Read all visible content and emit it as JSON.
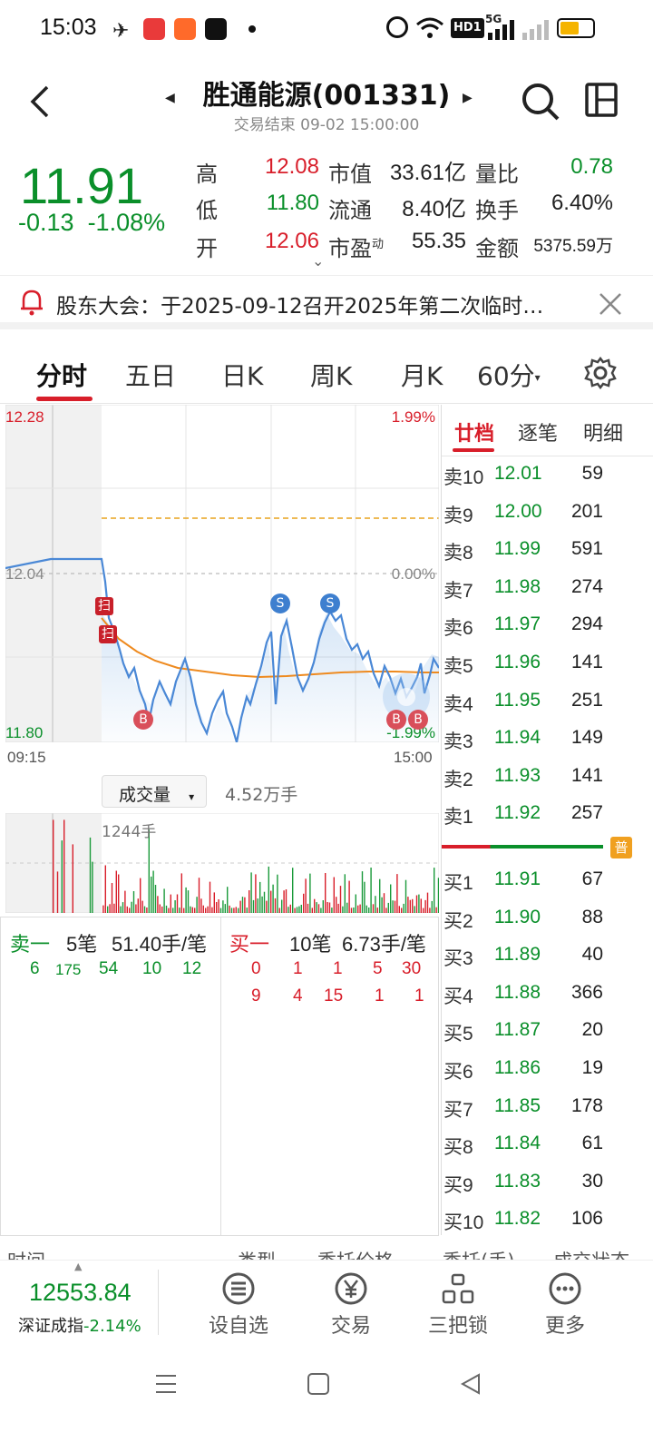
{
  "status_bar": {
    "time": "15:03",
    "icons": [
      "telegram-icon",
      "red-app-icon",
      "video-app-icon",
      "tiktok-icon",
      "alarm-icon",
      "wifi-icon",
      "hd-icon",
      "5g-signal-icon",
      "signal-icon",
      "battery-icon"
    ],
    "hd_label": "HD1",
    "net_label": "5G"
  },
  "header": {
    "title": "胜通能源(001331)",
    "subtitle": "交易结束 09-02 15:00:00"
  },
  "quote": {
    "price": "11.91",
    "change": "-0.13",
    "change_pct": "-1.08%",
    "high_label": "高",
    "high": "12.08",
    "low_label": "低",
    "low": "11.80",
    "open_label": "开",
    "open": "12.06",
    "mktcap_label": "市值",
    "mktcap": "33.61亿",
    "float_label": "流通",
    "float": "8.40亿",
    "pe_label": "市盈",
    "pe_sup": "动",
    "pe": "55.35",
    "volratio_label": "量比",
    "volratio": "0.78",
    "turnover_label": "换手",
    "turnover": "6.40%",
    "amount_label": "金额",
    "amount": "5375.59万"
  },
  "notice": {
    "text": "股东大会：于2025-09-12召开2025年第二次临时…"
  },
  "tabs": [
    "分时",
    "五日",
    "日K",
    "周K",
    "月K",
    "60分"
  ],
  "chart": {
    "y_max": "12.28",
    "y_mid": "12.04",
    "y_min": "11.80",
    "pct_max": "1.99%",
    "pct_mid": "0.00%",
    "pct_min": "-1.99%",
    "x_start": "09:15",
    "x_end": "15:00",
    "marker_scan": "扫",
    "marker_s": "S",
    "marker_b": "B"
  },
  "volume": {
    "dropdown_label": "成交量",
    "total": "4.52万手",
    "max_label": "1244手"
  },
  "book": {
    "tabs": [
      "廿档",
      "逐笔",
      "明细"
    ],
    "asks": [
      {
        "label": "卖10",
        "price": "12.01",
        "qty": "59"
      },
      {
        "label": "卖9",
        "price": "12.00",
        "qty": "201"
      },
      {
        "label": "卖8",
        "price": "11.99",
        "qty": "591"
      },
      {
        "label": "卖7",
        "price": "11.98",
        "qty": "274"
      },
      {
        "label": "卖6",
        "price": "11.97",
        "qty": "294"
      },
      {
        "label": "卖5",
        "price": "11.96",
        "qty": "141"
      },
      {
        "label": "卖4",
        "price": "11.95",
        "qty": "251"
      },
      {
        "label": "卖3",
        "price": "11.94",
        "qty": "149"
      },
      {
        "label": "卖2",
        "price": "11.93",
        "qty": "141"
      },
      {
        "label": "卖1",
        "price": "11.92",
        "qty": "257"
      }
    ],
    "badge": "普",
    "bids": [
      {
        "label": "买1",
        "price": "11.91",
        "qty": "67"
      },
      {
        "label": "买2",
        "price": "11.90",
        "qty": "88"
      },
      {
        "label": "买3",
        "price": "11.89",
        "qty": "40"
      },
      {
        "label": "买4",
        "price": "11.88",
        "qty": "366"
      },
      {
        "label": "买5",
        "price": "11.87",
        "qty": "20"
      },
      {
        "label": "买6",
        "price": "11.86",
        "qty": "19"
      },
      {
        "label": "买7",
        "price": "11.85",
        "qty": "178"
      },
      {
        "label": "买8",
        "price": "11.84",
        "qty": "61"
      },
      {
        "label": "买9",
        "price": "11.83",
        "qty": "30"
      },
      {
        "label": "买10",
        "price": "11.82",
        "qty": "106"
      }
    ]
  },
  "stats": {
    "sell_label": "卖一",
    "sell_count": "5笔",
    "sell_avg": "51.40手/笔",
    "sell_values": [
      "6",
      "175",
      "54",
      "10",
      "12"
    ],
    "buy_label": "买一",
    "buy_count": "10笔",
    "buy_avg": "6.73手/笔",
    "buy_values_1": [
      "0",
      "1",
      "1",
      "5",
      "30"
    ],
    "buy_values_2": [
      "9",
      "4",
      "15",
      "1",
      "1"
    ]
  },
  "table_header": [
    "时间",
    "类型",
    "委托价格",
    "委托(手)",
    "成交状态"
  ],
  "index": {
    "value": "12553.84",
    "name": "深证成指",
    "pct": "-2.14%"
  },
  "nav": [
    "设自选",
    "交易",
    "三把锁",
    "更多"
  ]
}
